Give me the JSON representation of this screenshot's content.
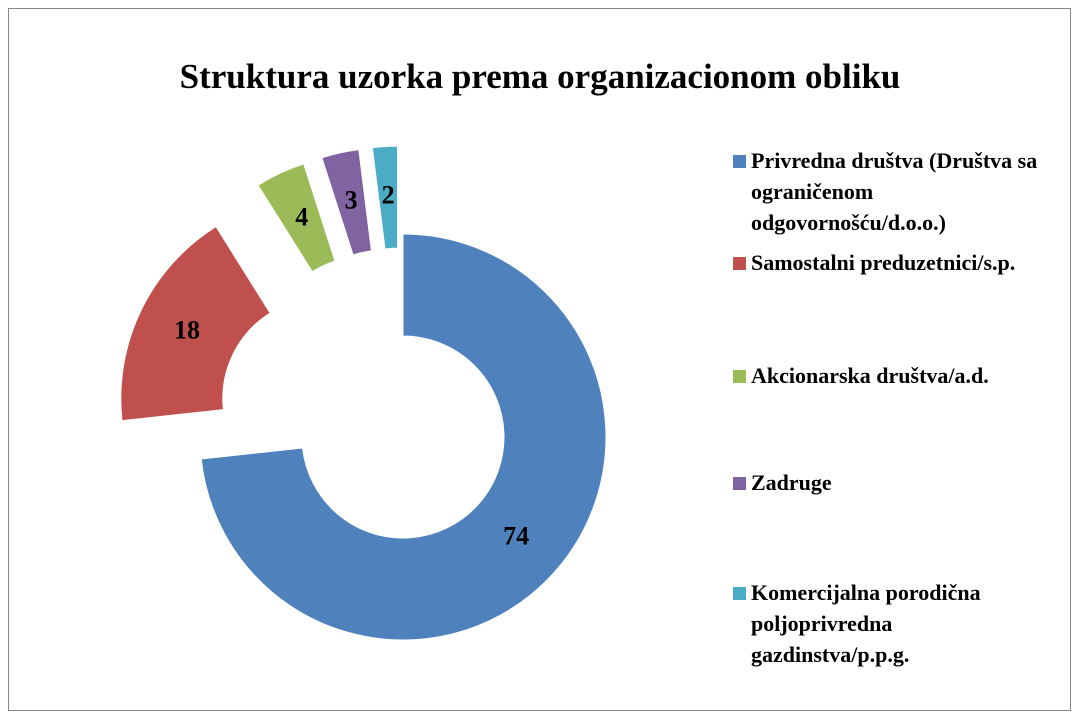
{
  "chart_data": {
    "type": "doughnut",
    "title": "Struktura uzorka prema organizacionom obliku",
    "categories": [
      "Privredna društva (Društva sa ograničenom odgovornošću/d.o.o.)",
      "Samostalni preduzetnici/s.p.",
      "Akcionarska društva/a.d.",
      "Zadruge",
      "Komercijalna porodična poljoprivredna gazdinstva/p.p.g."
    ],
    "values": [
      74,
      18,
      4,
      3,
      2
    ],
    "colors": [
      "#4f81bd",
      "#c0504d",
      "#9bbb59",
      "#8064a2",
      "#4bacc6"
    ],
    "legend": "right"
  }
}
